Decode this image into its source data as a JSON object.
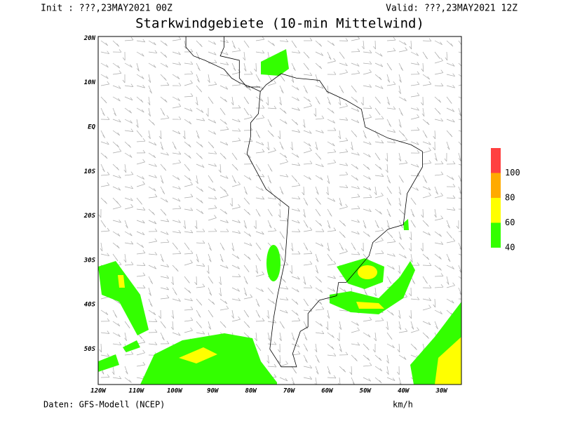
{
  "header": {
    "init": "Init : ???,23MAY2021 00Z",
    "valid": "Valid: ???,23MAY2021 12Z",
    "title": "Starkwindgebiete (10-min Mittelwind)"
  },
  "map": {
    "lat_labels": [
      "20N",
      "10N",
      "EQ",
      "10S",
      "20S",
      "30S",
      "40S",
      "50S"
    ],
    "lon_labels": [
      "120W",
      "110W",
      "100W",
      "90W",
      "80W",
      "70W",
      "60W",
      "50W",
      "40W",
      "30W"
    ]
  },
  "legend": {
    "levels": [
      40,
      60,
      80,
      100
    ],
    "colors": [
      "#33ff00",
      "#ffff00",
      "#ffaa00",
      "#ff4040"
    ],
    "unit": "km/h"
  },
  "footer": {
    "source": "Daten: GFS-Modell (NCEP)"
  }
}
